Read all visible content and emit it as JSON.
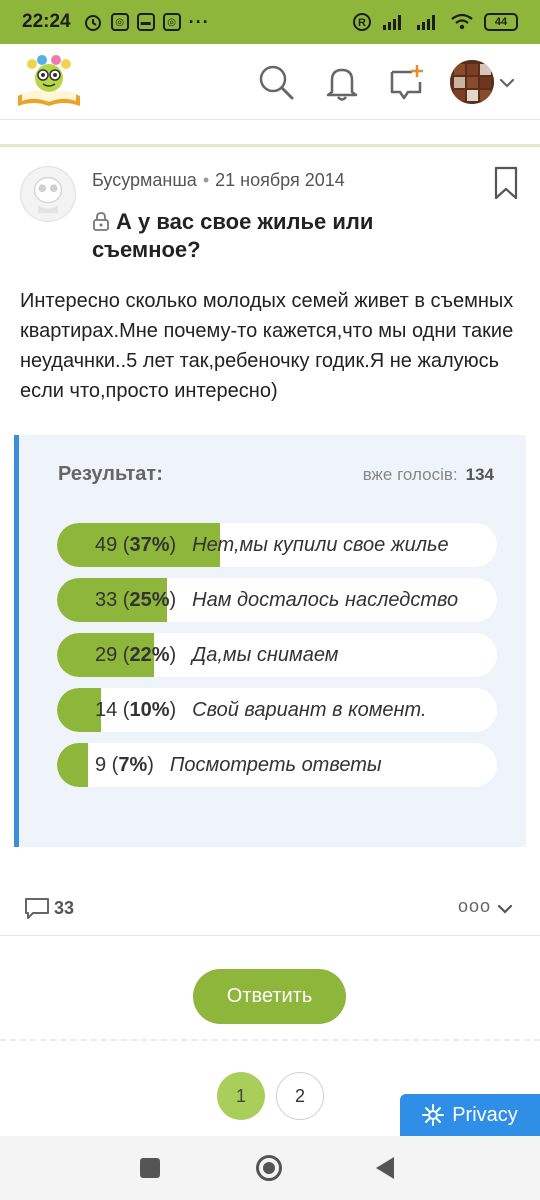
{
  "status_bar": {
    "time": "22:24",
    "battery": "44"
  },
  "header": {
    "logo_icon": "book-mascot-logo",
    "search_icon": "search-icon",
    "bell_icon": "bell-icon",
    "new_post_icon": "chat-plus-icon"
  },
  "post": {
    "author": "Бусурманша",
    "separator": "•",
    "date": "21 ноября 2014",
    "title": "А у вас свое жилье или съемное?",
    "body": "Интересно сколько молодых семей живет в съемных квартирах.Мне почему-то кажется,что мы одни такие неудачнки..5 лет так,ребеночку годик.Я не жалуюсь если что,просто интересно)"
  },
  "poll": {
    "result_label": "Результат:",
    "votes_label": "вже голосів:",
    "votes_total": "134",
    "accent_color": "#8db63a",
    "options": [
      {
        "count": "49",
        "percent": "37%",
        "label": "Нет,мы купили свое жилье",
        "fraction": 0.37
      },
      {
        "count": "33",
        "percent": "25%",
        "label": "Нам досталось наследство",
        "fraction": 0.25
      },
      {
        "count": "29",
        "percent": "22%",
        "label": "Да,мы снимаем",
        "fraction": 0.22
      },
      {
        "count": "14",
        "percent": "10%",
        "label": "Свой вариант в комент.",
        "fraction": 0.1
      },
      {
        "count": "9",
        "percent": "7%",
        "label": "Посмотреть ответы",
        "fraction": 0.07
      }
    ]
  },
  "actions": {
    "comments": "33",
    "more": "ooo"
  },
  "reply": {
    "label": "Ответить"
  },
  "pagination": {
    "pages": [
      "1",
      "2"
    ],
    "current": "1"
  },
  "privacy": {
    "label": "Privacy"
  }
}
